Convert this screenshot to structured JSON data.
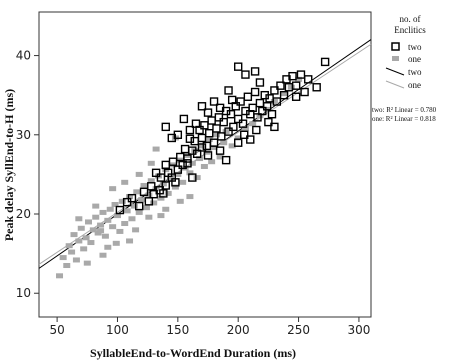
{
  "chart_data": {
    "type": "scatter",
    "xlabel": "SyllableEnd-to-WordEnd Duration (ms)",
    "ylabel": "Peak delay SyllEnd-to-H (ms)",
    "x_ticks": [
      50,
      100,
      150,
      200,
      250,
      300
    ],
    "y_ticks": [
      10,
      20,
      30,
      40
    ],
    "xlim": [
      35,
      310
    ],
    "ylim": [
      7,
      45.5
    ],
    "grid": false,
    "legend": {
      "title": "no. of Enclitics",
      "position": "right",
      "entries": [
        {
          "label": "two",
          "kind": "marker",
          "series": "two"
        },
        {
          "label": "one",
          "kind": "marker",
          "series": "one"
        },
        {
          "label": "two",
          "kind": "line",
          "series": "two"
        },
        {
          "label": "one",
          "kind": "line",
          "series": "one"
        }
      ]
    },
    "fit_annotations": [
      {
        "text": "two: R² Linear = 0.780",
        "series": "two"
      },
      {
        "text": "one: R² Linear = 0.818",
        "series": "one"
      }
    ],
    "series": [
      {
        "name": "two",
        "marker": "open-square",
        "color": "#000000",
        "points": [
          [
            102,
            20.5
          ],
          [
            108,
            21.5
          ],
          [
            112,
            22.0
          ],
          [
            118,
            21.0
          ],
          [
            122,
            22.8
          ],
          [
            126,
            21.6
          ],
          [
            128,
            23.5
          ],
          [
            130,
            22.5
          ],
          [
            135,
            23.0
          ],
          [
            136,
            24.6
          ],
          [
            138,
            22.6
          ],
          [
            140,
            23.6
          ],
          [
            142,
            25.2
          ],
          [
            140,
            26.2
          ],
          [
            145,
            24.6
          ],
          [
            146,
            26.6
          ],
          [
            150,
            25.6
          ],
          [
            152,
            27.2
          ],
          [
            154,
            26.2
          ],
          [
            156,
            28.2
          ],
          [
            158,
            27.0
          ],
          [
            160,
            29.5
          ],
          [
            162,
            28.0
          ],
          [
            164,
            29.2
          ],
          [
            166,
            27.6
          ],
          [
            168,
            30.6
          ],
          [
            170,
            29.6
          ],
          [
            172,
            31.2
          ],
          [
            174,
            28.6
          ],
          [
            176,
            30.2
          ],
          [
            178,
            31.8
          ],
          [
            180,
            29.0
          ],
          [
            182,
            30.8
          ],
          [
            184,
            32.2
          ],
          [
            186,
            29.8
          ],
          [
            188,
            31.6
          ],
          [
            190,
            33.0
          ],
          [
            192,
            30.4
          ],
          [
            194,
            32.6
          ],
          [
            196,
            31.0
          ],
          [
            198,
            33.6
          ],
          [
            200,
            32.0
          ],
          [
            202,
            34.2
          ],
          [
            204,
            31.4
          ],
          [
            206,
            33.0
          ],
          [
            208,
            34.8
          ],
          [
            210,
            32.6
          ],
          [
            212,
            33.4
          ],
          [
            214,
            35.4
          ],
          [
            216,
            32.2
          ],
          [
            218,
            34.0
          ],
          [
            220,
            33.0
          ],
          [
            222,
            35.0
          ],
          [
            224,
            33.6
          ],
          [
            226,
            34.6
          ],
          [
            228,
            32.6
          ],
          [
            230,
            35.6
          ],
          [
            232,
            34.2
          ],
          [
            235,
            36.2
          ],
          [
            238,
            35.0
          ],
          [
            240,
            37.0
          ],
          [
            242,
            36.0
          ],
          [
            245,
            37.4
          ],
          [
            248,
            36.2
          ],
          [
            252,
            37.6
          ],
          [
            258,
            37.0
          ],
          [
            265,
            36.0
          ],
          [
            272,
            39.2
          ],
          [
            255,
            35.4
          ],
          [
            248,
            34.8
          ],
          [
            140,
            31.0
          ],
          [
            150,
            30.0
          ],
          [
            155,
            32.0
          ],
          [
            145,
            29.6
          ],
          [
            160,
            30.6
          ],
          [
            165,
            31.4
          ],
          [
            170,
            28.4
          ],
          [
            175,
            32.8
          ],
          [
            185,
            33.4
          ],
          [
            195,
            34.4
          ],
          [
            158,
            26.4
          ],
          [
            148,
            24.0
          ],
          [
            132,
            25.2
          ],
          [
            162,
            24.6
          ],
          [
            175,
            27.4
          ],
          [
            185,
            28.0
          ],
          [
            190,
            26.8
          ],
          [
            200,
            29.0
          ],
          [
            205,
            30.0
          ],
          [
            210,
            29.4
          ],
          [
            215,
            30.6
          ],
          [
            225,
            31.6
          ],
          [
            230,
            31.0
          ],
          [
            218,
            36.6
          ],
          [
            206,
            37.6
          ],
          [
            192,
            35.6
          ],
          [
            180,
            34.2
          ],
          [
            170,
            33.6
          ],
          [
            200,
            38.6
          ],
          [
            214,
            38.0
          ]
        ]
      },
      {
        "name": "one",
        "marker": "filled-square",
        "color": "#a9a9a9",
        "points": [
          [
            52,
            12.2
          ],
          [
            55,
            14.5
          ],
          [
            58,
            13.5
          ],
          [
            60,
            16.0
          ],
          [
            62,
            15.2
          ],
          [
            64,
            17.4
          ],
          [
            66,
            14.2
          ],
          [
            68,
            16.6
          ],
          [
            70,
            18.2
          ],
          [
            72,
            15.6
          ],
          [
            74,
            17.0
          ],
          [
            76,
            19.0
          ],
          [
            78,
            16.4
          ],
          [
            80,
            18.0
          ],
          [
            82,
            19.6
          ],
          [
            84,
            17.6
          ],
          [
            86,
            18.6
          ],
          [
            88,
            20.2
          ],
          [
            90,
            17.2
          ],
          [
            92,
            19.2
          ],
          [
            94,
            20.6
          ],
          [
            96,
            18.4
          ],
          [
            98,
            21.2
          ],
          [
            100,
            19.8
          ],
          [
            102,
            17.8
          ],
          [
            104,
            21.6
          ],
          [
            106,
            18.8
          ],
          [
            108,
            20.4
          ],
          [
            110,
            22.2
          ],
          [
            112,
            19.4
          ],
          [
            114,
            21.0
          ],
          [
            116,
            22.8
          ],
          [
            118,
            20.2
          ],
          [
            120,
            21.8
          ],
          [
            122,
            23.6
          ],
          [
            124,
            20.8
          ],
          [
            126,
            22.4
          ],
          [
            128,
            24.2
          ],
          [
            130,
            21.4
          ],
          [
            132,
            23.2
          ],
          [
            134,
            24.8
          ],
          [
            136,
            22.0
          ],
          [
            138,
            23.8
          ],
          [
            140,
            25.6
          ],
          [
            142,
            22.6
          ],
          [
            144,
            24.4
          ],
          [
            146,
            26.2
          ],
          [
            148,
            23.4
          ],
          [
            150,
            25.0
          ],
          [
            152,
            26.8
          ],
          [
            154,
            24.0
          ],
          [
            156,
            25.8
          ],
          [
            158,
            27.4
          ],
          [
            160,
            25.2
          ],
          [
            162,
            26.4
          ],
          [
            164,
            28.0
          ],
          [
            166,
            24.6
          ],
          [
            168,
            27.0
          ],
          [
            170,
            28.6
          ],
          [
            172,
            26.0
          ],
          [
            174,
            27.8
          ],
          [
            176,
            29.4
          ],
          [
            178,
            26.6
          ],
          [
            180,
            28.4
          ],
          [
            182,
            30.0
          ],
          [
            185,
            27.2
          ],
          [
            188,
            29.0
          ],
          [
            190,
            30.4
          ],
          [
            195,
            28.6
          ],
          [
            200,
            29.6
          ],
          [
            206,
            30.8
          ],
          [
            212,
            31.4
          ],
          [
            218,
            32.4
          ],
          [
            224,
            33.2
          ],
          [
            230,
            34.2
          ],
          [
            238,
            35.2
          ],
          [
            244,
            36.0
          ],
          [
            250,
            37.0
          ],
          [
            96,
            23.2
          ],
          [
            106,
            24.0
          ],
          [
            118,
            25.0
          ],
          [
            88,
            14.8
          ],
          [
            92,
            15.8
          ],
          [
            110,
            16.6
          ],
          [
            82,
            21.0
          ],
          [
            68,
            19.4
          ],
          [
            126,
            19.6
          ],
          [
            140,
            20.6
          ],
          [
            160,
            22.2
          ],
          [
            132,
            28.2
          ],
          [
            148,
            29.6
          ],
          [
            75,
            13.8
          ],
          [
            86,
            17.9
          ],
          [
            99,
            16.3
          ],
          [
            115,
            18.0
          ],
          [
            128,
            26.4
          ],
          [
            136,
            19.8
          ],
          [
            152,
            21.6
          ]
        ]
      }
    ],
    "fit_lines": [
      {
        "series": "two",
        "color": "#000000",
        "from": [
          35,
          13.14
        ],
        "to": [
          310,
          42.02
        ]
      },
      {
        "series": "one",
        "color": "#a9a9a9",
        "from": [
          35,
          13.65
        ],
        "to": [
          310,
          41.43
        ]
      }
    ]
  }
}
